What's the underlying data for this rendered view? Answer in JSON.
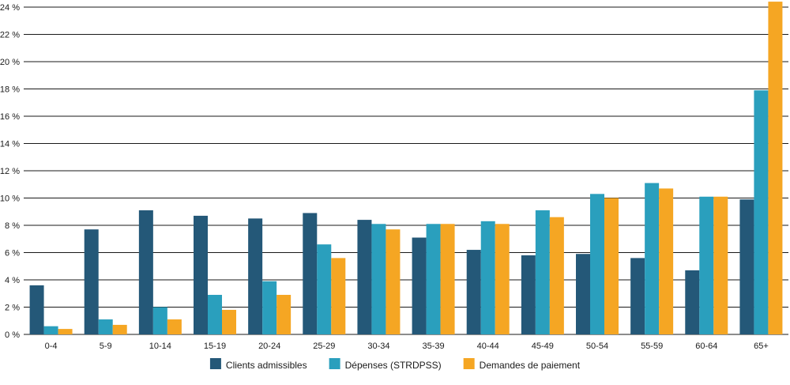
{
  "chart_data": {
    "type": "bar",
    "title": "",
    "xlabel": "",
    "ylabel": "",
    "categories": [
      "0-4",
      "5-9",
      "10-14",
      "15-19",
      "20-24",
      "25-29",
      "30-34",
      "35-39",
      "40-44",
      "45-49",
      "50-54",
      "55-59",
      "60-64",
      "65+"
    ],
    "series": [
      {
        "name": "Clients admissibles",
        "color": "#245878",
        "values": [
          3.6,
          7.7,
          9.1,
          8.7,
          8.5,
          8.9,
          8.4,
          7.1,
          6.2,
          5.8,
          5.9,
          5.6,
          4.7,
          9.9
        ]
      },
      {
        "name": "Dépenses (STRDPSS)",
        "color": "#2a9fbd",
        "values": [
          0.6,
          1.1,
          2.0,
          2.9,
          3.9,
          6.6,
          8.1,
          8.1,
          8.3,
          9.1,
          10.3,
          11.1,
          10.1,
          17.9
        ]
      },
      {
        "name": "Demandes de paiement",
        "color": "#f5a623",
        "values": [
          0.4,
          0.7,
          1.1,
          1.8,
          2.9,
          5.6,
          7.7,
          8.1,
          8.1,
          8.6,
          10.0,
          10.7,
          10.1,
          24.4
        ]
      }
    ],
    "ylim": [
      0,
      24
    ],
    "ytick_labels": [
      "0 %",
      "2 %",
      "4 %",
      "6 %",
      "8 %",
      "10 %",
      "12 %",
      "14 %",
      "16 %",
      "18 %",
      "20 %",
      "22 %",
      "24 %"
    ],
    "grid": true,
    "legend_position": "bottom-center"
  }
}
